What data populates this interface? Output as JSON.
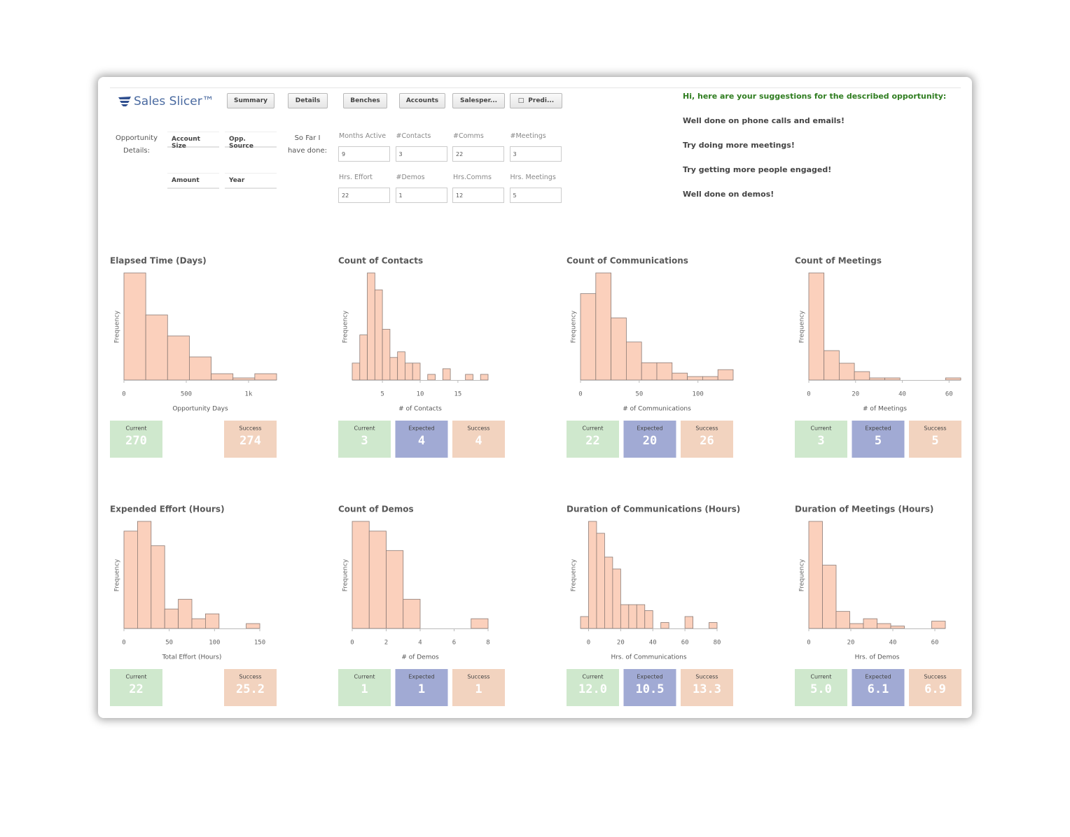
{
  "header": {
    "logo": "Sales Slicer™",
    "nav": [
      "Summary",
      "Details",
      "Benches",
      "Accounts",
      "Salesper...",
      "Predi..."
    ]
  },
  "opportunity": {
    "label": "Opportunity Details:",
    "fields": [
      "Account Size",
      "Opp. Source",
      "Amount",
      "Year"
    ]
  },
  "progress": {
    "label": "So Far I have done:",
    "fields": [
      {
        "label": "Months Active",
        "value": "9"
      },
      {
        "label": "#Contacts",
        "value": "3"
      },
      {
        "label": "#Comms",
        "value": "22"
      },
      {
        "label": "#Meetings",
        "value": "3"
      },
      {
        "label": "Hrs. Effort",
        "value": "22"
      },
      {
        "label": "#Demos",
        "value": "1"
      },
      {
        "label": "Hrs.Comms",
        "value": "12"
      },
      {
        "label": "Hrs. Meetings",
        "value": "5"
      }
    ]
  },
  "suggestions": {
    "title": "Hi, here are your suggestions for the described opportunity:",
    "items": [
      "Well done on phone calls and emails!",
      "Try doing more meetings!",
      "Try getting more people engaged!",
      "Well done on demos!"
    ]
  },
  "chart_data": [
    {
      "type": "histogram",
      "title": "Elapsed Time (Days)",
      "ylabel": "Frequency",
      "xlabel": "Opportunity Days",
      "color": "#fbd0bc",
      "bins": [
        0,
        175,
        350,
        525,
        700,
        875,
        1050,
        1225
      ],
      "counts": [
        51,
        31,
        21,
        11,
        3,
        1,
        3
      ],
      "xlim": [
        0,
        1225
      ],
      "ylim": [
        0,
        51
      ],
      "xticks": [
        0,
        500,
        {
          "value": 1000,
          "label": "1k"
        }
      ],
      "cards": [
        {
          "label": "Current",
          "value": "270",
          "color": "#cfe8cd"
        },
        {
          "label": "Success",
          "value": "274",
          "color": "#f2d3bf"
        }
      ]
    },
    {
      "type": "histogram",
      "title": "Count of Contacts",
      "ylabel": "Frequency",
      "xlabel": "# of Contacts",
      "color": "#fbd0bc",
      "bins": [
        1,
        2,
        3,
        4,
        5,
        6,
        7,
        8,
        9,
        10,
        11,
        12,
        13,
        14,
        15,
        16,
        17,
        18,
        19
      ],
      "counts": [
        3,
        8,
        19,
        16,
        9,
        4,
        5,
        3,
        3,
        0,
        1,
        0,
        2,
        0,
        0,
        1,
        0,
        1
      ],
      "xlim": [
        1,
        19
      ],
      "ylim": [
        0,
        19
      ],
      "xticks": [
        5,
        10,
        15
      ],
      "cards": [
        {
          "label": "Current",
          "value": "3",
          "color": "#cfe8cd"
        },
        {
          "label": "Expected",
          "value": "4",
          "color": "#a1aad4"
        },
        {
          "label": "Success",
          "value": "4",
          "color": "#f2d3bf"
        }
      ]
    },
    {
      "type": "histogram",
      "title": "Count of Communications",
      "ylabel": "Frequency",
      "xlabel": "# of Communications",
      "color": "#fbd0bc",
      "bins": [
        0,
        13,
        26,
        39,
        52,
        65,
        78,
        91,
        104,
        117,
        130
      ],
      "counts": [
        25,
        31,
        18,
        11,
        5,
        5,
        2,
        1,
        1,
        3
      ],
      "xlim": [
        0,
        130
      ],
      "ylim": [
        0,
        31
      ],
      "xticks": [
        0,
        50,
        100
      ],
      "cards": [
        {
          "label": "Current",
          "value": "22",
          "color": "#cfe8cd"
        },
        {
          "label": "Expected",
          "value": "20",
          "color": "#a1aad4"
        },
        {
          "label": "Success",
          "value": "26",
          "color": "#f2d3bf"
        }
      ]
    },
    {
      "type": "histogram",
      "title": "Count of Meetings",
      "ylabel": "Frequency",
      "xlabel": "# of Meetings",
      "color": "#fbd0bc",
      "bins": [
        0,
        6.5,
        13,
        19.5,
        26,
        32.5,
        39,
        45.5,
        52,
        58.5,
        65
      ],
      "counts": [
        51,
        14,
        8,
        4,
        1,
        1,
        0,
        0,
        0,
        1
      ],
      "xlim": [
        0,
        65
      ],
      "ylim": [
        0,
        51
      ],
      "xticks": [
        0,
        20,
        40,
        60
      ],
      "cards": [
        {
          "label": "Current",
          "value": "3",
          "color": "#cfe8cd"
        },
        {
          "label": "Expected",
          "value": "5",
          "color": "#a1aad4"
        },
        {
          "label": "Success",
          "value": "5",
          "color": "#f2d3bf"
        }
      ]
    },
    {
      "type": "histogram",
      "title": "Expended Effort (Hours)",
      "ylabel": "Frequency",
      "xlabel": "Total Effort (Hours)",
      "color": "#fbd0bc",
      "bins": [
        0,
        15,
        30,
        45,
        60,
        75,
        90,
        105,
        120,
        135,
        150
      ],
      "counts": [
        20,
        22,
        17,
        4,
        6,
        2,
        3,
        0,
        0,
        1
      ],
      "xlim": [
        0,
        150
      ],
      "ylim": [
        0,
        22
      ],
      "xticks": [
        0,
        50,
        100,
        150
      ],
      "cards": [
        {
          "label": "Current",
          "value": "22",
          "color": "#cfe8cd"
        },
        {
          "label": "Success",
          "value": "25.2",
          "color": "#f2d3bf"
        }
      ]
    },
    {
      "type": "histogram",
      "title": "Count of Demos",
      "ylabel": "Frequency",
      "xlabel": "# of Demos",
      "color": "#fbd0bc",
      "bins": [
        0,
        1,
        2,
        3,
        4,
        5,
        6,
        7,
        8
      ],
      "counts": [
        11,
        10,
        8,
        3,
        0,
        0,
        0,
        1
      ],
      "xlim": [
        0,
        8
      ],
      "ylim": [
        0,
        11
      ],
      "xticks": [
        0,
        2,
        4,
        6,
        8
      ],
      "cards": [
        {
          "label": "Current",
          "value": "1",
          "color": "#cfe8cd"
        },
        {
          "label": "Expected",
          "value": "1",
          "color": "#a1aad4"
        },
        {
          "label": "Success",
          "value": "1",
          "color": "#f2d3bf"
        }
      ]
    },
    {
      "type": "histogram",
      "title": "Duration of Communications (Hours)",
      "ylabel": "Frequency",
      "xlabel": "Hrs. of Communications",
      "color": "#fbd0bc",
      "bins": [
        -5,
        0,
        5,
        10,
        15,
        20,
        25,
        30,
        35,
        40,
        45,
        50,
        55,
        60,
        65,
        70,
        75,
        80
      ],
      "counts": [
        2,
        18,
        16,
        12,
        10,
        4,
        4,
        4,
        3,
        0,
        1,
        0,
        0,
        2,
        0,
        0,
        1
      ],
      "xlim": [
        -5,
        80
      ],
      "ylim": [
        0,
        18
      ],
      "xticks": [
        0,
        20,
        40,
        60,
        80
      ],
      "cards": [
        {
          "label": "Current",
          "value": "12.0",
          "color": "#cfe8cd"
        },
        {
          "label": "Expected",
          "value": "10.5",
          "color": "#a1aad4"
        },
        {
          "label": "Success",
          "value": "13.3",
          "color": "#f2d3bf"
        }
      ]
    },
    {
      "type": "histogram",
      "title": "Duration of Meetings (Hours)",
      "ylabel": "Frequency",
      "xlabel": "Hrs. of Demos",
      "color": "#fbd0bc",
      "bins": [
        0,
        6.5,
        13,
        19.5,
        26,
        32.5,
        39,
        45.5,
        52,
        58.5,
        65
      ],
      "counts": [
        44,
        26,
        7,
        2,
        4,
        2,
        1,
        0,
        0,
        3
      ],
      "xlim": [
        0,
        65
      ],
      "ylim": [
        0,
        44
      ],
      "xticks": [
        0,
        20,
        40,
        60
      ],
      "cards": [
        {
          "label": "Current",
          "value": "5.0",
          "color": "#cfe8cd"
        },
        {
          "label": "Expected",
          "value": "6.1",
          "color": "#a1aad4"
        },
        {
          "label": "Success",
          "value": "6.9",
          "color": "#f2d3bf"
        }
      ]
    }
  ]
}
